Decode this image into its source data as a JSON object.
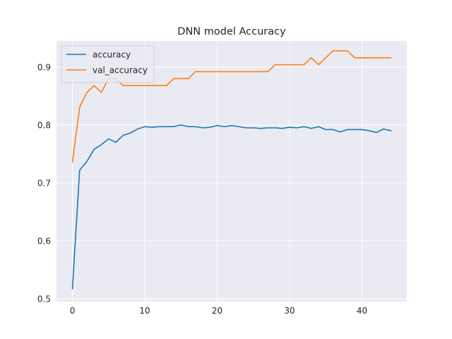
{
  "chart_data": {
    "type": "line",
    "title": "DNN model Accuracy",
    "xlabel": "",
    "ylabel": "",
    "xlim": [
      -2.2,
      46.2
    ],
    "ylim": [
      0.495,
      0.945
    ],
    "xticks": [
      0,
      10,
      20,
      30,
      40
    ],
    "yticks": [
      0.5,
      0.6,
      0.7,
      0.8,
      0.9
    ],
    "grid": true,
    "background": "#eaeaf2",
    "legend_position": "top-left",
    "x": [
      0,
      1,
      2,
      3,
      4,
      5,
      6,
      7,
      8,
      9,
      10,
      11,
      12,
      13,
      14,
      15,
      16,
      17,
      18,
      19,
      20,
      21,
      22,
      23,
      24,
      25,
      26,
      27,
      28,
      29,
      30,
      31,
      32,
      33,
      34,
      35,
      36,
      37,
      38,
      39,
      40,
      41,
      42,
      43,
      44
    ],
    "series": [
      {
        "name": "accuracy",
        "color": "#1f77b4",
        "values": [
          0.517,
          0.722,
          0.737,
          0.758,
          0.766,
          0.776,
          0.77,
          0.782,
          0.786,
          0.793,
          0.797,
          0.796,
          0.797,
          0.797,
          0.797,
          0.8,
          0.797,
          0.797,
          0.795,
          0.796,
          0.799,
          0.797,
          0.799,
          0.797,
          0.795,
          0.795,
          0.794,
          0.795,
          0.795,
          0.794,
          0.796,
          0.795,
          0.797,
          0.794,
          0.797,
          0.792,
          0.792,
          0.788,
          0.792,
          0.792,
          0.792,
          0.79,
          0.787,
          0.793,
          0.79
        ]
      },
      {
        "name": "val_accuracy",
        "color": "#ff7f0e",
        "values": [
          0.736,
          0.831,
          0.856,
          0.868,
          0.856,
          0.88,
          0.88,
          0.868,
          0.868,
          0.868,
          0.868,
          0.868,
          0.868,
          0.868,
          0.88,
          0.88,
          0.88,
          0.892,
          0.892,
          0.892,
          0.892,
          0.892,
          0.892,
          0.892,
          0.892,
          0.892,
          0.892,
          0.892,
          0.904,
          0.904,
          0.904,
          0.904,
          0.904,
          0.916,
          0.904,
          0.916,
          0.928,
          0.928,
          0.928,
          0.916,
          0.916,
          0.916,
          0.916,
          0.916,
          0.916
        ]
      }
    ]
  }
}
